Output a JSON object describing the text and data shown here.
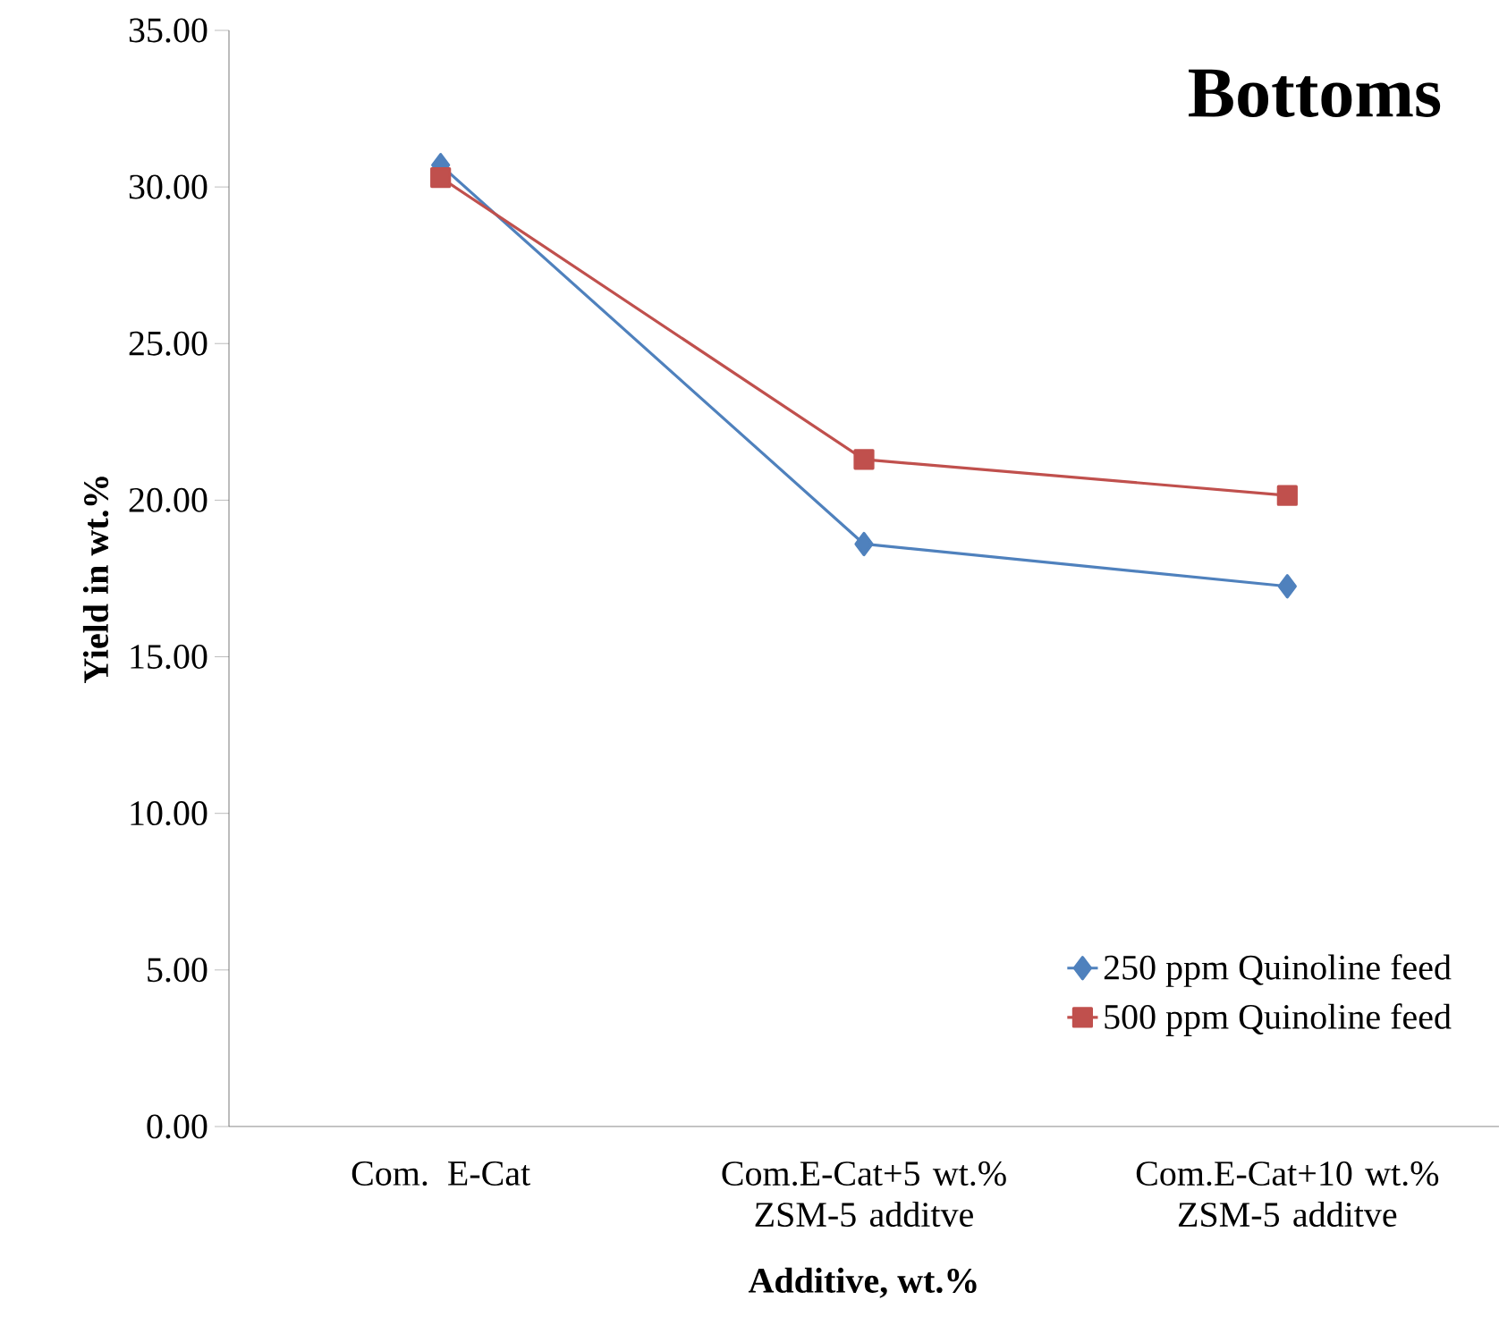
{
  "chart_data": {
    "type": "line",
    "title": "Bottoms",
    "xlabel": "Additive, wt.%",
    "ylabel": "Yield in wt.%",
    "categories": [
      "Com. E-Cat",
      "Com.E-Cat+5 wt.% ZSM-5 additve",
      "Com.E-Cat+10 wt.% ZSM-5 additve"
    ],
    "series": [
      {
        "name": "250 ppm Quinoline feed",
        "color": "#4f81bd",
        "marker": "diamond",
        "values": [
          30.7,
          18.6,
          17.25
        ]
      },
      {
        "name": "500 ppm Quinoline feed",
        "color": "#c0504d",
        "marker": "square",
        "values": [
          30.3,
          21.3,
          20.15
        ]
      }
    ],
    "ylim": [
      0,
      35
    ],
    "yticks": [
      {
        "value": 0,
        "label": "0.00"
      },
      {
        "value": 5,
        "label": "5.00"
      },
      {
        "value": 10,
        "label": "10.00"
      },
      {
        "value": 15,
        "label": "15.00"
      },
      {
        "value": 20,
        "label": "20.00"
      },
      {
        "value": 25,
        "label": "25.00"
      },
      {
        "value": 30,
        "label": "30.00"
      },
      {
        "value": 35,
        "label": "35.00"
      }
    ],
    "grid": false,
    "legend": "bottom right",
    "line_style": "solid"
  }
}
